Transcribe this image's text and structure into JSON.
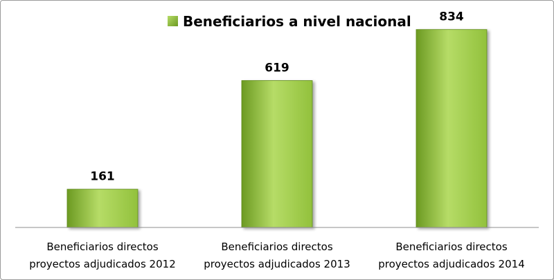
{
  "chart_data": {
    "type": "bar",
    "categories": [
      [
        "Beneficiarios directos",
        "proyectos adjudicados 2012"
      ],
      [
        "Beneficiarios directos",
        "proyectos adjudicados 2013"
      ],
      [
        "Beneficiarios directos",
        "proyectos adjudicados 2014"
      ]
    ],
    "series": [
      {
        "name": "Beneficiarios a nivel nacional",
        "values": [
          161,
          619,
          834
        ]
      }
    ],
    "ylim": [
      0,
      900
    ],
    "grid": false,
    "legend_position": "top",
    "bar_color": "#92c13c",
    "bar_color_light": "#b6dc67",
    "bar_color_dark": "#6c9a22",
    "bar_border": "#5f8a1d"
  }
}
